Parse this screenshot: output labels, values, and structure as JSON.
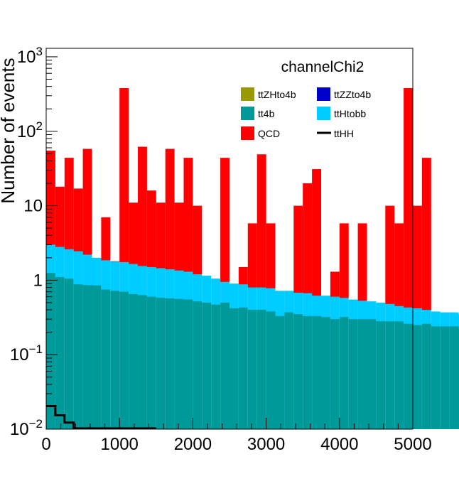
{
  "chart_data": {
    "type": "bar",
    "stacked": true,
    "log_y": true,
    "title": "channelChi2",
    "xlabel": "",
    "ylabel": "Number of events",
    "xlim": [
      0,
      5000
    ],
    "ylim": [
      0.01,
      1300
    ],
    "bin_width": 125,
    "x_ticks": [
      {
        "value": 0,
        "label": "0"
      },
      {
        "value": 1000,
        "label": "1000"
      },
      {
        "value": 2000,
        "label": "2000"
      },
      {
        "value": 3000,
        "label": "3000"
      },
      {
        "value": 4000,
        "label": "4000"
      },
      {
        "value": 5000,
        "label": "5000"
      }
    ],
    "y_ticks": [
      {
        "value": 0.01,
        "base": "10",
        "exp": "−2"
      },
      {
        "value": 0.1,
        "base": "10",
        "exp": "−1"
      },
      {
        "value": 1,
        "base": "1",
        "exp": ""
      },
      {
        "value": 10,
        "base": "10",
        "exp": ""
      },
      {
        "value": 100,
        "base": "10",
        "exp": "2"
      },
      {
        "value": 1000,
        "base": "10",
        "exp": "3"
      }
    ],
    "legend": {
      "placement": "top-right",
      "entries": [
        {
          "name": "ttZHto4b",
          "color": "#999900",
          "kind": "fill"
        },
        {
          "name": "ttZZto4b",
          "color": "#0000cc",
          "kind": "fill"
        },
        {
          "name": "tt4b",
          "color": "#009999",
          "kind": "fill"
        },
        {
          "name": "ttHtobb",
          "color": "#00ccff",
          "kind": "fill"
        },
        {
          "name": "QCD",
          "color": "#ff0000",
          "kind": "fill"
        },
        {
          "name": "ttHH",
          "color": "#000000",
          "kind": "line"
        }
      ]
    },
    "series": [
      {
        "name": "tt4b",
        "color": "#009999",
        "values": [
          1.25,
          1.1,
          1.05,
          0.88,
          0.86,
          0.85,
          0.75,
          0.72,
          0.7,
          0.65,
          0.63,
          0.6,
          0.58,
          0.57,
          0.56,
          0.55,
          0.52,
          0.5,
          0.47,
          0.5,
          0.42,
          0.43,
          0.4,
          0.4,
          0.38,
          0.33,
          0.37,
          0.35,
          0.33,
          0.33,
          0.32,
          0.3,
          0.32,
          0.3,
          0.3,
          0.3,
          0.28,
          0.28,
          0.28,
          0.26,
          0.25,
          0.26,
          0.24,
          0.24,
          0.24,
          0.22
        ]
      },
      {
        "name": "ttHtobb",
        "cumulative": true,
        "color": "#00ccff",
        "values": [
          3.0,
          2.8,
          2.6,
          2.45,
          2.2,
          2.0,
          1.85,
          1.78,
          1.75,
          1.65,
          1.55,
          1.5,
          1.45,
          1.4,
          1.35,
          1.3,
          1.2,
          1.15,
          1.05,
          0.95,
          0.9,
          0.88,
          0.8,
          0.8,
          0.78,
          0.72,
          0.72,
          0.68,
          0.67,
          0.62,
          0.62,
          0.6,
          0.58,
          0.55,
          0.53,
          0.52,
          0.5,
          0.48,
          0.45,
          0.43,
          0.42,
          0.4,
          0.38,
          0.37,
          0.37,
          0.35
        ]
      },
      {
        "name": "QCD",
        "cumulative": true,
        "color": "#ff0000",
        "values": [
          55,
          18,
          44,
          17,
          58,
          2.0,
          7.0,
          1.8,
          380,
          11,
          62,
          16,
          11,
          58,
          11,
          44,
          10,
          0,
          0,
          44,
          0,
          1.5,
          5.8,
          49,
          5.8,
          0,
          0,
          10,
          20,
          31,
          0,
          1.3,
          5.8,
          0,
          5.8,
          0,
          0,
          10,
          5.8,
          380,
          10,
          44,
          0,
          0,
          0,
          0
        ]
      },
      {
        "name": "ttHH",
        "color": "#000000",
        "values": [
          0.02,
          0.015,
          0.012,
          0.01,
          0.01,
          0.01,
          0.01,
          0.01
        ]
      }
    ]
  }
}
